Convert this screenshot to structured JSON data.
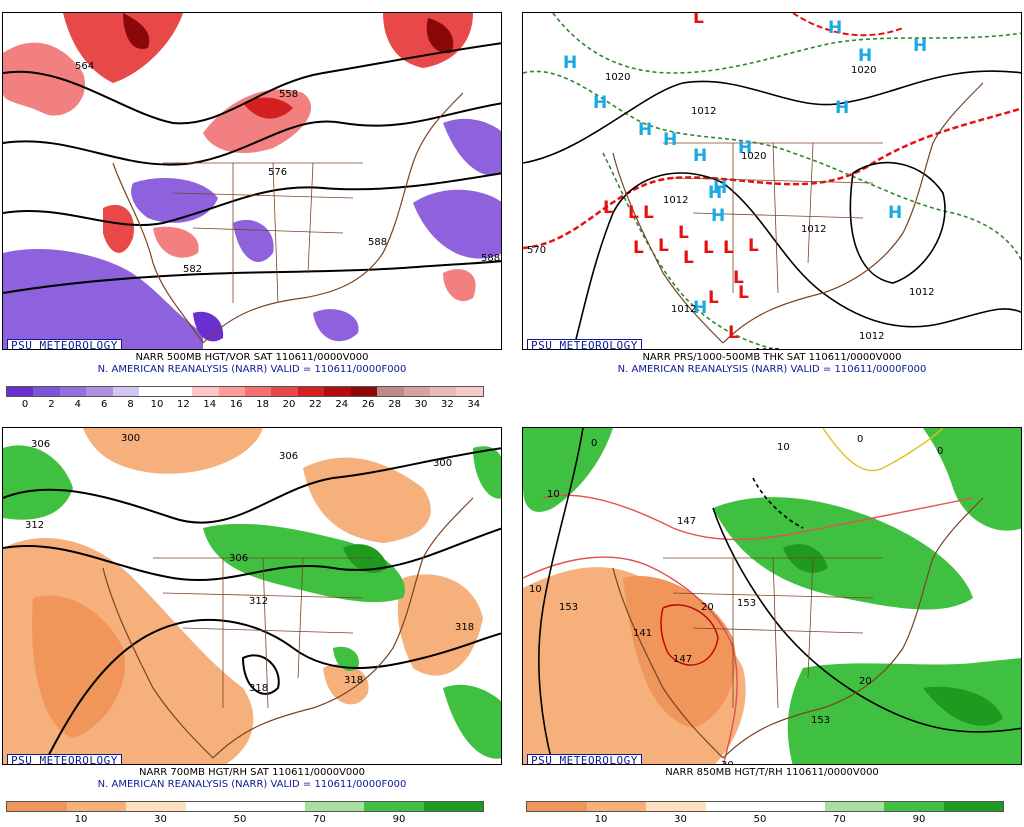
{
  "panels": [
    {
      "badge": "PSU METEOROLOGY",
      "caption_line1": "NARR 500MB HGT/VOR SAT 110611/0000V000",
      "caption_line2": "N. AMERICAN REANALYSIS (NARR) VALID = 110611/0000F000",
      "colorbar": {
        "colors": [
          "#6a2fd2",
          "#7e54d8",
          "#9470da",
          "#ad92e4",
          "#d3c6f0",
          "#ffffff",
          "#ffffff",
          "#ffc4c4",
          "#ff9c9c",
          "#f57070",
          "#e84848",
          "#d42020",
          "#b40c0c",
          "#8c0808",
          "#c08a8a",
          "#d7a2a2",
          "#e8baba",
          "#f4cccc"
        ],
        "labels": [
          "0",
          "2",
          "4",
          "6",
          "8",
          "10",
          "12",
          "14",
          "16",
          "18",
          "20",
          "22",
          "24",
          "26",
          "28",
          "30",
          "32",
          "34"
        ]
      },
      "contour_labels": [
        "564",
        "558",
        "576",
        "582",
        "588",
        "588"
      ]
    },
    {
      "badge": "PSU METEOROLOGY",
      "caption_line1": "NARR PRS/1000-500MB THK SAT 110611/0000V000",
      "caption_line2": "N. AMERICAN REANALYSIS (NARR) VALID = 110611/0000F000",
      "contour_labels": [
        "1020",
        "1012",
        "1020",
        "1020",
        "1012",
        "1012",
        "1012",
        "1012",
        "1012",
        "1012",
        "570"
      ],
      "highs": "H",
      "lows": "L",
      "colors": {
        "high": "#19a9e3",
        "low": "#e61010"
      }
    },
    {
      "badge": "PSU METEOROLOGY",
      "caption_line1": "NARR 700MB HGT/RH SAT 110611/0000V000",
      "caption_line2": "N. AMERICAN REANALYSIS (NARR) VALID = 110611/0000F000",
      "colorbar": {
        "colors": [
          "#f0965a",
          "#f5b07c",
          "#fde0c0",
          "#ffffff",
          "#ffffff",
          "#a8e0a0",
          "#40c040",
          "#1e9a1e"
        ],
        "labels": [
          "10",
          "30",
          "50",
          "70",
          "90"
        ]
      },
      "contour_labels": [
        "306",
        "300",
        "306",
        "312",
        "306",
        "312",
        "318",
        "318",
        "318",
        "300"
      ]
    },
    {
      "badge": "PSU METEOROLOGY",
      "caption_line1": "NARR 850MB HGT/T/RH 110611/0000V000",
      "colorbar": {
        "colors": [
          "#f0965a",
          "#f5b07c",
          "#fde0c0",
          "#ffffff",
          "#ffffff",
          "#a8e0a0",
          "#40c040",
          "#1e9a1e"
        ],
        "labels": [
          "10",
          "30",
          "50",
          "70",
          "90"
        ]
      },
      "contour_labels": [
        "147",
        "153",
        "153",
        "141",
        "147",
        "153",
        "10",
        "20",
        "30",
        "20",
        "10",
        "0",
        "0",
        "0",
        "10"
      ]
    }
  ]
}
